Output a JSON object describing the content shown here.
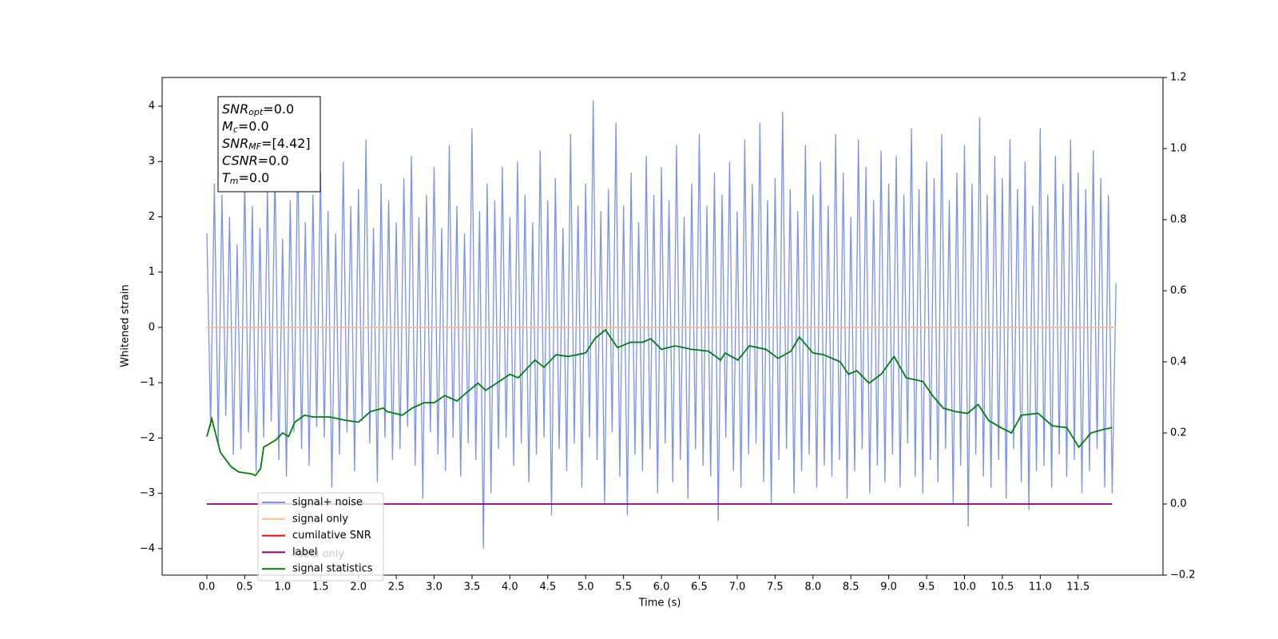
{
  "chart_data": {
    "type": "line",
    "xlabel": "Time (s)",
    "ylabel": "Whitened strain",
    "xlim": [
      -0.59,
      12.62
    ],
    "ylim": [
      -4.48,
      4.52
    ],
    "y2lim": [
      -0.2,
      1.2
    ],
    "xticks": [
      {
        "value": 0,
        "label": "0.0"
      },
      0.5,
      {
        "value": 1,
        "label": "1.0"
      },
      1.5,
      {
        "value": 2,
        "label": "2.0"
      },
      2.5,
      {
        "value": 3,
        "label": "3.0"
      },
      3.5,
      {
        "value": 4,
        "label": "4.0"
      },
      4.5,
      {
        "value": 5,
        "label": "5.0"
      },
      5.5,
      {
        "value": 6,
        "label": "6.0"
      },
      6.5,
      {
        "value": 7,
        "label": "7.0"
      },
      7.5,
      {
        "value": 8,
        "label": "8.0"
      },
      8.5,
      {
        "value": 9,
        "label": "9.0"
      },
      9.5,
      {
        "value": 10,
        "label": "10.0"
      },
      10.5,
      {
        "value": 11,
        "label": "11.0"
      },
      11.5
    ],
    "yticks": [
      {
        "value": -4,
        "label": "−4"
      },
      {
        "value": -3,
        "label": "−3"
      },
      {
        "value": -2,
        "label": "−2"
      },
      {
        "value": -1,
        "label": "−1"
      },
      0,
      1,
      2,
      3,
      4
    ],
    "y2ticks": [
      {
        "value": -0.2,
        "label": "−0.2"
      },
      {
        "value": 0,
        "label": "0.0"
      },
      0.2,
      0.4,
      0.6,
      0.8,
      {
        "value": 1,
        "label": "1.0"
      },
      1.2
    ],
    "annotations": [
      {
        "symbol": "SNR",
        "sub": "opt",
        "text": "=0.0"
      },
      {
        "symbol": "M",
        "sub": "c",
        "text": "=0.0"
      },
      {
        "symbol": "SNR",
        "sub": "MF",
        "text": "=[4.42]"
      },
      {
        "symbol": "CSNR",
        "text": "=0.0"
      },
      {
        "symbol": "T",
        "sub": "m",
        "text": "=0.0"
      }
    ],
    "legend_ghost_text": "label only",
    "series": [
      {
        "name": "signal+ noise",
        "color": "#7994e8",
        "x": [
          0,
          0.05,
          0.1,
          0.15,
          0.2,
          0.25,
          0.3,
          0.35,
          0.4,
          0.45,
          0.5,
          0.55,
          0.6,
          0.65,
          0.7,
          0.75,
          0.8,
          0.85,
          0.9,
          0.95,
          1,
          1.05,
          1.1,
          1.15,
          1.2,
          1.25,
          1.3,
          1.35,
          1.4,
          1.45,
          1.5,
          1.55,
          1.6,
          1.65,
          1.7,
          1.75,
          1.8,
          1.85,
          1.9,
          1.95,
          2,
          2.05,
          2.1,
          2.15,
          2.2,
          2.25,
          2.3,
          2.35,
          2.4,
          2.45,
          2.5,
          2.55,
          2.6,
          2.65,
          2.7,
          2.75,
          2.8,
          2.85,
          2.9,
          2.95,
          3,
          3.05,
          3.1,
          3.15,
          3.2,
          3.25,
          3.3,
          3.35,
          3.4,
          3.45,
          3.5,
          3.55,
          3.6,
          3.65,
          3.7,
          3.75,
          3.8,
          3.85,
          3.9,
          3.95,
          4,
          4.05,
          4.1,
          4.15,
          4.2,
          4.25,
          4.3,
          4.35,
          4.4,
          4.45,
          4.5,
          4.55,
          4.6,
          4.65,
          4.7,
          4.75,
          4.8,
          4.85,
          4.9,
          4.95,
          5,
          5.05,
          5.1,
          5.15,
          5.2,
          5.25,
          5.3,
          5.35,
          5.4,
          5.45,
          5.5,
          5.55,
          5.6,
          5.65,
          5.7,
          5.75,
          5.8,
          5.85,
          5.9,
          5.95,
          6,
          6.05,
          6.1,
          6.15,
          6.2,
          6.25,
          6.3,
          6.35,
          6.4,
          6.45,
          6.5,
          6.55,
          6.6,
          6.65,
          6.7,
          6.75,
          6.8,
          6.85,
          6.9,
          6.95,
          7,
          7.05,
          7.1,
          7.15,
          7.2,
          7.25,
          7.3,
          7.35,
          7.4,
          7.45,
          7.5,
          7.55,
          7.6,
          7.65,
          7.7,
          7.75,
          7.8,
          7.85,
          7.9,
          7.95,
          8,
          8.05,
          8.1,
          8.15,
          8.2,
          8.25,
          8.3,
          8.35,
          8.4,
          8.45,
          8.5,
          8.55,
          8.6,
          8.65,
          8.7,
          8.75,
          8.8,
          8.85,
          8.9,
          8.95,
          9,
          9.05,
          9.1,
          9.15,
          9.2,
          9.25,
          9.3,
          9.35,
          9.4,
          9.45,
          9.5,
          9.55,
          9.6,
          9.65,
          9.7,
          9.75,
          9.8,
          9.85,
          9.9,
          9.95,
          10,
          10.05,
          10.1,
          10.15,
          10.2,
          10.25,
          10.3,
          10.35,
          10.4,
          10.45,
          10.5,
          10.55,
          10.6,
          10.65,
          10.7,
          10.75,
          10.8,
          10.85,
          10.9,
          10.95,
          11,
          11.05,
          11.1,
          11.15,
          11.2,
          11.25,
          11.3,
          11.35,
          11.4,
          11.45,
          11.5,
          11.55,
          11.6,
          11.65,
          11.7,
          11.75,
          11.8,
          11.85,
          11.9,
          11.95,
          12
        ],
        "values": [
          1.7,
          -1.8,
          2.6,
          -2.1,
          2.4,
          -1.6,
          2.0,
          -2.3,
          1.5,
          -2.2,
          2.7,
          -1.9,
          2.2,
          -2.6,
          1.8,
          -2.0,
          2.5,
          -1.7,
          2.9,
          -2.4,
          1.6,
          -2.7,
          2.3,
          -1.9,
          3.2,
          -2.2,
          1.9,
          -2.5,
          2.4,
          -1.8,
          2.8,
          -2.0,
          2.1,
          -2.9,
          1.7,
          -2.3,
          3.0,
          -1.9,
          2.2,
          -2.6,
          2.5,
          -1.7,
          3.4,
          -2.1,
          1.8,
          -2.8,
          2.6,
          -2.0,
          2.3,
          -2.4,
          1.9,
          -2.2,
          2.7,
          -1.8,
          3.1,
          -2.5,
          2.0,
          -3.1,
          2.4,
          -1.9,
          2.9,
          -2.3,
          1.8,
          -2.6,
          3.3,
          -2.0,
          2.2,
          -2.7,
          1.7,
          -2.1,
          3.6,
          -2.4,
          2.1,
          -4.0,
          2.6,
          -3.0,
          2.3,
          -2.2,
          2.9,
          -2.0,
          2.0,
          -2.5,
          3.0,
          -2.1,
          2.4,
          -2.8,
          1.9,
          -2.3,
          3.2,
          -2.0,
          2.3,
          -3.4,
          2.7,
          -2.2,
          1.8,
          -2.6,
          3.5,
          -2.1,
          2.2,
          -2.9,
          2.6,
          -2.0,
          4.1,
          -2.4,
          2.1,
          -3.2,
          2.5,
          -1.9,
          3.7,
          -2.7,
          2.2,
          -3.4,
          2.8,
          -2.3,
          1.9,
          -2.6,
          3.1,
          -2.2,
          2.4,
          -3.0,
          2.9,
          -2.1,
          2.3,
          -2.8,
          3.3,
          -2.4,
          2.0,
          -3.1,
          2.6,
          -2.2,
          3.5,
          -2.5,
          2.2,
          -2.7,
          2.8,
          -3.5,
          2.4,
          -2.0,
          3.0,
          -2.6,
          2.1,
          -2.9,
          3.4,
          -2.3,
          2.6,
          -2.1,
          3.7,
          -2.8,
          2.3,
          -3.2,
          2.7,
          -2.4,
          3.9,
          -2.2,
          2.5,
          -3.0,
          2.1,
          -2.6,
          3.3,
          -2.3,
          2.4,
          -2.9,
          3.0,
          -2.5,
          2.2,
          -2.7,
          3.5,
          -2.4,
          2.8,
          -3.1,
          2.0,
          -2.6,
          3.4,
          -2.2,
          2.9,
          -3.0,
          2.3,
          -2.5,
          3.2,
          -2.8,
          2.6,
          -2.3,
          3.1,
          -2.9,
          2.4,
          -2.1,
          3.6,
          -2.7,
          2.5,
          -3.0,
          3.0,
          -2.4,
          2.7,
          -2.8,
          3.5,
          -2.2,
          2.3,
          -3.2,
          2.8,
          -2.5,
          3.3,
          -3.6,
          2.6,
          -2.3,
          3.8,
          -2.7,
          2.4,
          -2.9,
          3.1,
          -2.4,
          2.7,
          -3.1,
          3.4,
          -2.2,
          2.5,
          -2.8,
          3.0,
          -3.3,
          2.2,
          -2.6,
          3.6,
          -2.5,
          2.4,
          -2.9,
          3.1,
          -2.3,
          2.6,
          -2.7,
          3.4,
          -2.4,
          2.8,
          -3.0,
          2.5,
          -2.6,
          3.2,
          -2.2,
          2.7,
          -2.9,
          2.4,
          -3.0,
          0.8
        ]
      },
      {
        "name": "signal only",
        "color": "#ffbf80",
        "x": [
          0,
          12
        ],
        "values": [
          0,
          0
        ]
      },
      {
        "name": "cumilative SNR",
        "color": "#ff0000",
        "x": [],
        "values": []
      },
      {
        "name": "label",
        "color": "#800080",
        "axis": "y2",
        "x": [
          0,
          11.95
        ],
        "values": [
          0,
          0
        ]
      },
      {
        "name": "signal statistics",
        "color": "#008000",
        "axis": "y2",
        "x": [
          0,
          0.065,
          0.18,
          0.32,
          0.42,
          0.59,
          0.64,
          0.71,
          0.75,
          0.91,
          1.0,
          1.08,
          1.16,
          1.29,
          1.4,
          1.62,
          1.84,
          2.0,
          2.16,
          2.33,
          2.38,
          2.58,
          2.71,
          2.87,
          3.0,
          3.14,
          3.3,
          3.41,
          3.58,
          3.68,
          3.79,
          4.0,
          4.11,
          4.33,
          4.45,
          4.61,
          4.77,
          5.0,
          5.12,
          5.26,
          5.42,
          5.59,
          5.75,
          5.86,
          6.0,
          6.18,
          6.4,
          6.62,
          6.78,
          6.84,
          7.01,
          7.16,
          7.38,
          7.54,
          7.71,
          7.82,
          8.0,
          8.14,
          8.36,
          8.47,
          8.58,
          8.74,
          8.9,
          9.07,
          9.23,
          9.45,
          9.58,
          9.72,
          9.88,
          10.04,
          10.18,
          10.32,
          10.48,
          10.62,
          10.75,
          10.97,
          11.16,
          11.35,
          11.51,
          11.67,
          11.84,
          11.95
        ],
        "values": [
          0.19,
          0.24,
          0.145,
          0.105,
          0.09,
          0.085,
          0.08,
          0.1,
          0.16,
          0.18,
          0.2,
          0.19,
          0.23,
          0.25,
          0.245,
          0.245,
          0.235,
          0.23,
          0.26,
          0.27,
          0.26,
          0.25,
          0.27,
          0.285,
          0.285,
          0.305,
          0.29,
          0.31,
          0.34,
          0.32,
          0.335,
          0.365,
          0.355,
          0.405,
          0.385,
          0.42,
          0.415,
          0.425,
          0.465,
          0.49,
          0.44,
          0.455,
          0.455,
          0.465,
          0.435,
          0.445,
          0.435,
          0.43,
          0.405,
          0.425,
          0.405,
          0.445,
          0.435,
          0.41,
          0.43,
          0.47,
          0.425,
          0.42,
          0.4,
          0.365,
          0.375,
          0.34,
          0.365,
          0.415,
          0.355,
          0.345,
          0.305,
          0.27,
          0.26,
          0.255,
          0.28,
          0.235,
          0.215,
          0.2,
          0.25,
          0.255,
          0.22,
          0.215,
          0.16,
          0.2,
          0.21,
          0.215
        ]
      }
    ]
  }
}
